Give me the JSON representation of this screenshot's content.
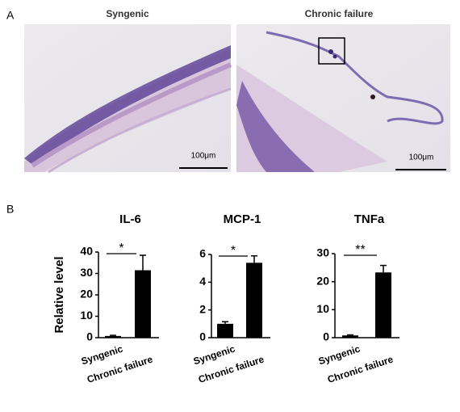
{
  "panel_labels": [
    "A",
    "B"
  ],
  "images": [
    {
      "title": "Syngenic",
      "scale_bar": "100μm"
    },
    {
      "title": "Chronic failure",
      "scale_bar": "100μm"
    }
  ],
  "chart_data": [
    {
      "type": "bar",
      "title": "IL-6",
      "y_label": "Relative level",
      "categories": [
        "Syngenic",
        "Chronic failure"
      ],
      "values": [
        0.8,
        31.5
      ],
      "errors": [
        0.3,
        7
      ],
      "color": "#000000",
      "ylim": [
        0,
        40
      ],
      "yticks": [
        0,
        10,
        20,
        30,
        40
      ],
      "annotation": "*"
    },
    {
      "type": "bar",
      "title": "MCP-1",
      "categories": [
        "Syngenic",
        "Chronic failure"
      ],
      "values": [
        1.0,
        5.4
      ],
      "errors": [
        0.15,
        0.5
      ],
      "color": "#000000",
      "ylim": [
        0,
        6
      ],
      "yticks": [
        0,
        2,
        4,
        6
      ],
      "annotation": "*"
    },
    {
      "type": "bar",
      "title": "TNFa",
      "categories": [
        "Syngenic",
        "Chronic failure"
      ],
      "values": [
        0.8,
        23.3
      ],
      "errors": [
        0.2,
        2.5
      ],
      "color": "#000000",
      "ylim": [
        0,
        30
      ],
      "yticks": [
        0,
        10,
        20,
        30
      ],
      "annotation": "**"
    }
  ]
}
